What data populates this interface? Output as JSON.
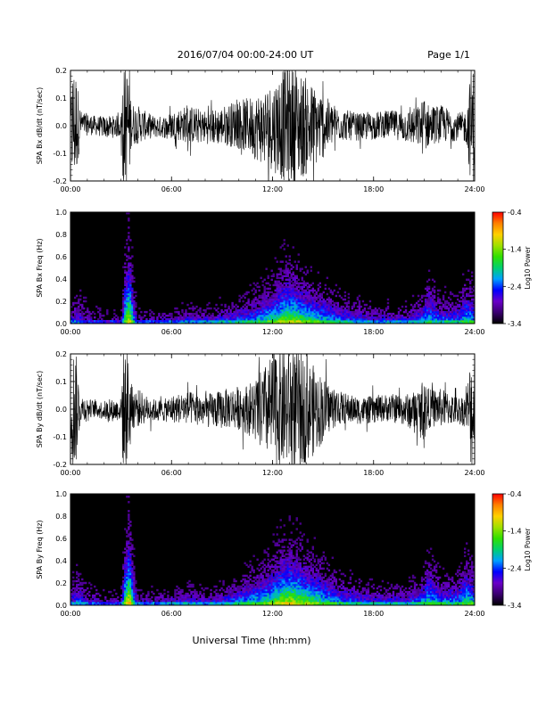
{
  "header": {
    "date_range": "2016/07/04  00:00-24:00 UT",
    "page_label": "Page 1/1"
  },
  "footer": {
    "xlabel": "Universal Time (hh:mm)"
  },
  "colors": {
    "trace": "#000000",
    "background": "#000000",
    "colormap": [
      "#000000",
      "#3a0070",
      "#6a00c8",
      "#0000ff",
      "#00a0ff",
      "#00d070",
      "#30e000",
      "#a0e000",
      "#ffd000",
      "#ff8000",
      "#ff0000"
    ]
  },
  "chart_data": [
    {
      "type": "line",
      "ylabel": "SPA Bx dB/dt (nT/sec)",
      "x_ticks": [
        "00:00",
        "06:00",
        "12:00",
        "18:00",
        "24:00"
      ],
      "xlim": [
        0,
        24
      ],
      "ylim": [
        -0.2,
        0.2
      ],
      "y_ticks": [
        "0.2",
        "0.1",
        "0.0",
        "-0.1",
        "-0.2"
      ],
      "envelope": {
        "hours": [
          0,
          0.1,
          0.3,
          0.6,
          1,
          1.5,
          2,
          2.5,
          3.0,
          3.1,
          3.5,
          3.6,
          4,
          4.5,
          5,
          5.5,
          6,
          7,
          8,
          9,
          10,
          10.5,
          11,
          11.5,
          12,
          12.5,
          13,
          13.5,
          14,
          14.5,
          15,
          15.5,
          16,
          17,
          18,
          19,
          20,
          20.8,
          21,
          21.3,
          22,
          22.5,
          23,
          23.5,
          23.8,
          24
        ],
        "amplitude": [
          0.05,
          0.22,
          0.22,
          0.05,
          0.04,
          0.035,
          0.04,
          0.04,
          0.04,
          0.22,
          0.22,
          0.08,
          0.07,
          0.05,
          0.04,
          0.04,
          0.05,
          0.07,
          0.06,
          0.07,
          0.09,
          0.1,
          0.12,
          0.14,
          0.16,
          0.2,
          0.22,
          0.2,
          0.18,
          0.15,
          0.12,
          0.08,
          0.06,
          0.05,
          0.05,
          0.05,
          0.06,
          0.08,
          0.12,
          0.07,
          0.07,
          0.06,
          0.05,
          0.06,
          0.22,
          0.22
        ]
      }
    },
    {
      "type": "heatmap",
      "ylabel": "SPA Bx Freq (Hz)",
      "x_ticks": [
        "00:00",
        "06:00",
        "12:00",
        "18:00",
        "24:00"
      ],
      "xlim": [
        0,
        24
      ],
      "ylim": [
        0,
        1.0
      ],
      "y_ticks": [
        "1.0",
        "0.8",
        "0.6",
        "0.4",
        "0.2",
        "0.0"
      ],
      "colorbar": {
        "label": "Log10 Power",
        "range": [
          -3.4,
          -0.4
        ],
        "ticks": [
          "-0.4",
          "-1.4",
          "-2.4",
          "-3.4"
        ]
      },
      "activity": {
        "hours": [
          0,
          0.5,
          1,
          2,
          3,
          3.2,
          3.5,
          3.8,
          4,
          5,
          6,
          7,
          8,
          9,
          10,
          11,
          12,
          12.5,
          13,
          13.5,
          14,
          15,
          16,
          17,
          18,
          19,
          20,
          21,
          21.2,
          22,
          23,
          23.5,
          24
        ],
        "intensity": [
          0.3,
          0.35,
          0.25,
          0.2,
          0.2,
          0.55,
          0.85,
          0.4,
          0.25,
          0.25,
          0.3,
          0.35,
          0.35,
          0.4,
          0.45,
          0.5,
          0.6,
          0.7,
          0.75,
          0.7,
          0.65,
          0.55,
          0.45,
          0.4,
          0.35,
          0.35,
          0.35,
          0.45,
          0.5,
          0.45,
          0.45,
          0.55,
          0.5
        ],
        "extent_hz": [
          0.35,
          0.4,
          0.3,
          0.2,
          0.2,
          0.8,
          1.0,
          0.5,
          0.2,
          0.2,
          0.2,
          0.25,
          0.2,
          0.25,
          0.3,
          0.4,
          0.55,
          0.65,
          0.7,
          0.6,
          0.55,
          0.45,
          0.35,
          0.3,
          0.25,
          0.25,
          0.25,
          0.4,
          0.6,
          0.35,
          0.35,
          0.55,
          0.45
        ]
      }
    },
    {
      "type": "line",
      "ylabel": "SPA By dB/dt (nT/sec)",
      "x_ticks": [
        "00:00",
        "06:00",
        "12:00",
        "18:00",
        "24:00"
      ],
      "xlim": [
        0,
        24
      ],
      "ylim": [
        -0.2,
        0.2
      ],
      "y_ticks": [
        "0.2",
        "0.1",
        "0.0",
        "-0.1",
        "-0.2"
      ],
      "envelope": {
        "hours": [
          0,
          0.1,
          0.3,
          0.6,
          1,
          1.5,
          2,
          2.5,
          3.0,
          3.1,
          3.5,
          3.6,
          4,
          4.5,
          5,
          5.5,
          6,
          7,
          8,
          9,
          10,
          10.5,
          11,
          11.5,
          12,
          12.5,
          13,
          13.5,
          14,
          14.5,
          15,
          15.5,
          16,
          17,
          18,
          19,
          20,
          20.8,
          21,
          21.3,
          22,
          22.5,
          23,
          23.5,
          23.8,
          24
        ],
        "amplitude": [
          0.05,
          0.22,
          0.22,
          0.05,
          0.035,
          0.03,
          0.035,
          0.04,
          0.04,
          0.22,
          0.22,
          0.08,
          0.07,
          0.05,
          0.04,
          0.04,
          0.05,
          0.06,
          0.06,
          0.07,
          0.08,
          0.09,
          0.12,
          0.16,
          0.2,
          0.22,
          0.22,
          0.21,
          0.19,
          0.16,
          0.12,
          0.08,
          0.06,
          0.05,
          0.05,
          0.05,
          0.06,
          0.08,
          0.12,
          0.07,
          0.07,
          0.06,
          0.05,
          0.06,
          0.22,
          0.22
        ]
      }
    },
    {
      "type": "heatmap",
      "ylabel": "SPA By Freq (Hz)",
      "x_ticks": [
        "00:00",
        "06:00",
        "12:00",
        "18:00",
        "24:00"
      ],
      "xlim": [
        0,
        24
      ],
      "ylim": [
        0,
        1.0
      ],
      "y_ticks": [
        "1.0",
        "0.8",
        "0.6",
        "0.4",
        "0.2",
        "0.0"
      ],
      "colorbar": {
        "label": "Log10 Power",
        "range": [
          -3.4,
          -0.4
        ],
        "ticks": [
          "-0.4",
          "-1.4",
          "-2.4",
          "-3.4"
        ]
      },
      "activity": {
        "hours": [
          0,
          0.5,
          1,
          2,
          3,
          3.2,
          3.5,
          3.8,
          4,
          5,
          6,
          7,
          8,
          9,
          10,
          11,
          12,
          12.5,
          13,
          13.5,
          14,
          15,
          16,
          17,
          18,
          19,
          20,
          21,
          21.2,
          22,
          23,
          23.5,
          24
        ],
        "intensity": [
          0.35,
          0.4,
          0.3,
          0.25,
          0.25,
          0.6,
          0.9,
          0.45,
          0.3,
          0.3,
          0.35,
          0.4,
          0.35,
          0.4,
          0.5,
          0.55,
          0.65,
          0.75,
          0.8,
          0.75,
          0.7,
          0.6,
          0.5,
          0.45,
          0.4,
          0.4,
          0.4,
          0.5,
          0.55,
          0.5,
          0.5,
          0.6,
          0.55
        ],
        "extent_hz": [
          0.35,
          0.45,
          0.3,
          0.2,
          0.2,
          0.8,
          1.0,
          0.5,
          0.2,
          0.2,
          0.2,
          0.25,
          0.2,
          0.25,
          0.35,
          0.45,
          0.6,
          0.7,
          0.75,
          0.7,
          0.6,
          0.5,
          0.35,
          0.3,
          0.25,
          0.25,
          0.25,
          0.4,
          0.65,
          0.35,
          0.35,
          0.6,
          0.45
        ]
      }
    }
  ]
}
